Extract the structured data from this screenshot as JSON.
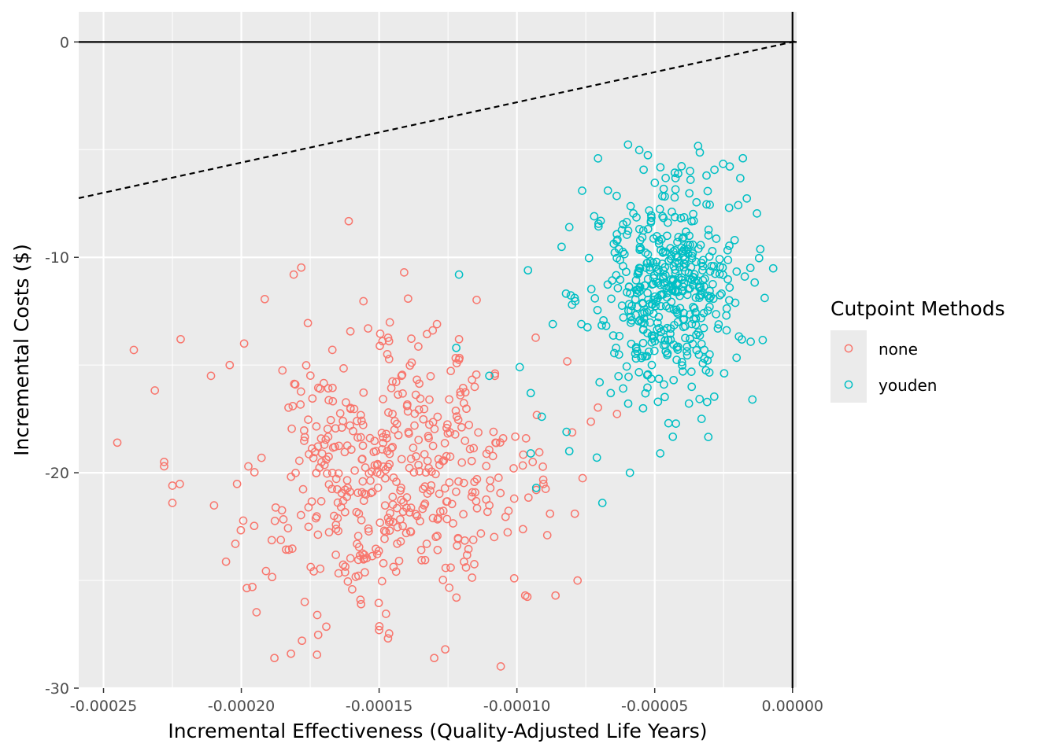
{
  "chart_data": {
    "type": "scatter",
    "xlabel": "Incremental Effectiveness (Quality-Adjusted Life Years)",
    "ylabel": "Incremental Costs ($)",
    "xlim": [
      -0.000259,
      1.5e-06
    ],
    "ylim": [
      -30.0,
      1.4
    ],
    "x_ticks": [
      -0.00025,
      -0.0002,
      -0.00015,
      -0.0001,
      -5e-05,
      0.0
    ],
    "x_tick_labels": [
      "-0.00025",
      "-0.00020",
      "-0.00015",
      "-0.00010",
      "-0.00005",
      "0.00000"
    ],
    "y_ticks": [
      0,
      -10,
      -20,
      -30
    ],
    "y_tick_labels": [
      "0",
      "-10",
      "-20",
      "-30"
    ],
    "grid": true,
    "reference_lines": {
      "hline_y": 0,
      "vline_x": 0,
      "threshold_line": {
        "style": "dashed",
        "slope": 28000,
        "intercept": 0
      }
    },
    "legend": {
      "title": "Cutpoint Methods",
      "position": "right",
      "entries": [
        "none",
        "youden"
      ]
    },
    "series": [
      {
        "name": "none",
        "color": "#F8766D",
        "marker": "open-circle",
        "sample_size": 500,
        "center": [
          -0.000147,
          -20.3
        ],
        "spread": [
          2.6e-05,
          3.3
        ],
        "notable_points": [
          [
            -0.000245,
            -18.6
          ],
          [
            -0.000239,
            -14.3
          ],
          [
            -0.000228,
            -19.5
          ],
          [
            -0.000228,
            -19.7
          ],
          [
            -0.000222,
            -13.8
          ],
          [
            -0.000225,
            -20.6
          ],
          [
            -0.000225,
            -21.4
          ],
          [
            -0.000211,
            -15.5
          ],
          [
            -0.000199,
            -14.0
          ],
          [
            -0.000181,
            -10.8
          ],
          [
            -0.000188,
            -28.6
          ],
          [
            -0.000182,
            -28.4
          ],
          [
            -0.000178,
            -27.8
          ],
          [
            -0.000177,
            -26.0
          ],
          [
            -0.000196,
            -25.3
          ],
          [
            -0.00015,
            -27.3
          ],
          [
            -0.00013,
            -28.6
          ],
          [
            -0.000126,
            -28.2
          ],
          [
            -0.000129,
            -13.1
          ],
          [
            -0.000154,
            -13.3
          ],
          [
            -0.000121,
            -13.8
          ],
          [
            -0.000108,
            -15.5
          ],
          [
            -0.000105,
            -18.4
          ],
          [
            -9.7e-05,
            -25.7
          ],
          [
            -0.000101,
            -24.9
          ],
          [
            -8.9e-05,
            -22.9
          ],
          [
            -8.8e-05,
            -21.9
          ],
          [
            -7.9e-05,
            -21.9
          ],
          [
            -7.8e-05,
            -25.0
          ],
          [
            -8.6e-05,
            -25.7
          ],
          [
            -9.3e-05,
            -20.8
          ],
          [
            -0.000101,
            -21.2
          ]
        ]
      },
      {
        "name": "youden",
        "color": "#00BFC4",
        "marker": "open-circle",
        "sample_size": 500,
        "center": [
          -4.5e-05,
          -11.6
        ],
        "spread": [
          1.3e-05,
          2.6
        ],
        "notable_points": [
          [
            -1.8e-05,
            -5.4
          ],
          [
            -3.7e-05,
            -6.4
          ],
          [
            -6.7e-05,
            -6.9
          ],
          [
            -8.1e-05,
            -8.6
          ],
          [
            -9.6e-05,
            -10.6
          ],
          [
            -0.000121,
            -10.8
          ],
          [
            -0.000122,
            -14.2
          ],
          [
            -0.00011,
            -15.5
          ],
          [
            -9.9e-05,
            -15.1
          ],
          [
            -9.5e-05,
            -16.3
          ],
          [
            -9.1e-05,
            -17.4
          ],
          [
            -8.1e-05,
            -19.0
          ],
          [
            -8.2e-05,
            -18.1
          ],
          [
            -9.5e-05,
            -19.1
          ],
          [
            -9.3e-05,
            -20.7
          ],
          [
            -7.1e-05,
            -19.3
          ],
          [
            -6.9e-05,
            -21.4
          ],
          [
            -5.9e-05,
            -20.0
          ],
          [
            -4.8e-05,
            -19.1
          ],
          [
            -3.3e-05,
            -17.5
          ],
          [
            -4.5e-05,
            -17.7
          ],
          [
            -3.2e-05,
            -14.3
          ],
          [
            -2.1e-05,
            -9.2
          ],
          [
            -2.3e-05,
            -7.7
          ],
          [
            -2.4e-05,
            -12.7
          ],
          [
            -8e-05,
            -12.2
          ],
          [
            -8.7e-05,
            -13.1
          ],
          [
            -7e-05,
            -15.8
          ]
        ]
      }
    ]
  }
}
